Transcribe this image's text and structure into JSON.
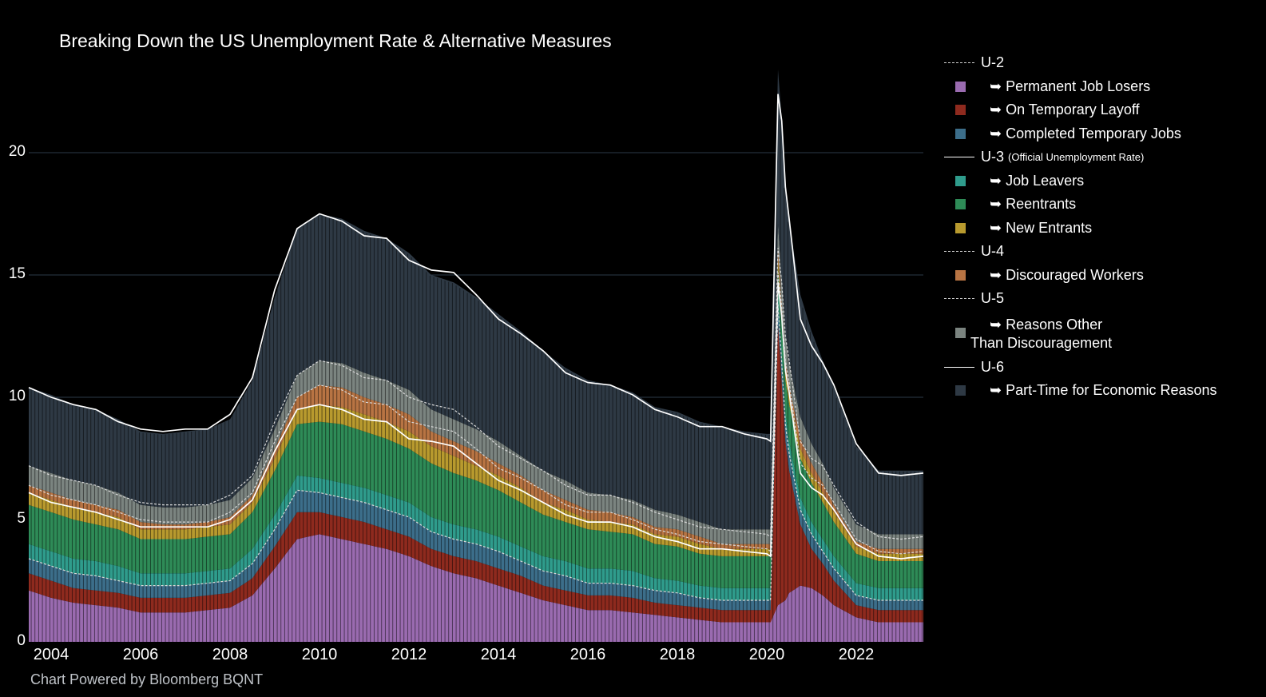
{
  "chart_data": {
    "type": "area",
    "title": "Breaking Down the US Unemployment Rate & Alternative Measures",
    "credit": "Chart Powered by Bloomberg BQNT",
    "x_range": [
      "2003-07",
      "2023-07"
    ],
    "ylim": [
      0,
      23.5
    ],
    "y_ticks": [
      "0",
      "5",
      "10",
      "15",
      "20"
    ],
    "x_ticks": [
      "2004",
      "2006",
      "2008",
      "2010",
      "2012",
      "2014",
      "2016",
      "2018",
      "2020",
      "2022"
    ],
    "grid": true,
    "legend_position": "right",
    "dates": [
      "2003-07",
      "2004-01",
      "2004-07",
      "2005-01",
      "2005-07",
      "2006-01",
      "2006-07",
      "2007-01",
      "2007-07",
      "2008-01",
      "2008-07",
      "2009-01",
      "2009-07",
      "2010-01",
      "2010-07",
      "2011-01",
      "2011-07",
      "2012-01",
      "2012-07",
      "2013-01",
      "2013-07",
      "2014-01",
      "2014-07",
      "2015-01",
      "2015-07",
      "2016-01",
      "2016-07",
      "2017-01",
      "2017-07",
      "2018-01",
      "2018-07",
      "2019-01",
      "2019-07",
      "2020-01",
      "2020-02",
      "2020-04",
      "2020-05",
      "2020-06",
      "2020-07",
      "2020-10",
      "2021-01",
      "2021-04",
      "2021-07",
      "2022-01",
      "2022-07",
      "2023-01",
      "2023-07"
    ],
    "series": [
      {
        "name": "Permanent Job Losers",
        "color": "#9a6bb0",
        "values": [
          2.1,
          1.8,
          1.6,
          1.5,
          1.4,
          1.2,
          1.2,
          1.2,
          1.3,
          1.4,
          1.9,
          3.0,
          4.2,
          4.4,
          4.2,
          4.0,
          3.8,
          3.5,
          3.1,
          2.8,
          2.6,
          2.3,
          2.0,
          1.7,
          1.5,
          1.3,
          1.3,
          1.2,
          1.1,
          1.0,
          0.9,
          0.8,
          0.8,
          0.8,
          0.8,
          1.5,
          1.6,
          1.7,
          2.0,
          2.3,
          2.2,
          1.9,
          1.5,
          1.0,
          0.8,
          0.8,
          0.8
        ]
      },
      {
        "name": "On Temporary Layoff",
        "color": "#8e2a1e",
        "values": [
          0.7,
          0.7,
          0.6,
          0.6,
          0.6,
          0.6,
          0.6,
          0.6,
          0.6,
          0.6,
          0.7,
          0.9,
          1.1,
          0.9,
          0.9,
          0.9,
          0.8,
          0.8,
          0.7,
          0.7,
          0.7,
          0.7,
          0.7,
          0.6,
          0.6,
          0.6,
          0.6,
          0.6,
          0.5,
          0.5,
          0.5,
          0.5,
          0.5,
          0.5,
          0.5,
          11.5,
          9.0,
          6.5,
          5.0,
          2.5,
          1.6,
          1.3,
          1.0,
          0.5,
          0.5,
          0.5,
          0.5
        ]
      },
      {
        "name": "Completed Temporary Jobs",
        "color": "#3c6e8a",
        "values": [
          0.6,
          0.6,
          0.6,
          0.6,
          0.5,
          0.5,
          0.5,
          0.5,
          0.5,
          0.5,
          0.6,
          0.7,
          0.9,
          0.8,
          0.8,
          0.8,
          0.8,
          0.8,
          0.7,
          0.7,
          0.7,
          0.7,
          0.6,
          0.6,
          0.6,
          0.5,
          0.5,
          0.5,
          0.5,
          0.5,
          0.4,
          0.4,
          0.4,
          0.4,
          0.4,
          0.8,
          0.8,
          0.7,
          0.7,
          0.6,
          0.6,
          0.5,
          0.5,
          0.4,
          0.4,
          0.4,
          0.4
        ]
      },
      {
        "name": "Job Leavers",
        "color": "#2f9c8c",
        "values": [
          0.6,
          0.6,
          0.6,
          0.6,
          0.6,
          0.5,
          0.5,
          0.5,
          0.5,
          0.5,
          0.6,
          0.6,
          0.6,
          0.6,
          0.6,
          0.6,
          0.6,
          0.6,
          0.6,
          0.6,
          0.6,
          0.6,
          0.6,
          0.6,
          0.6,
          0.6,
          0.6,
          0.6,
          0.5,
          0.5,
          0.5,
          0.5,
          0.5,
          0.5,
          0.5,
          0.5,
          0.5,
          0.5,
          0.5,
          0.5,
          0.5,
          0.5,
          0.5,
          0.5,
          0.5,
          0.5,
          0.5
        ]
      },
      {
        "name": "Reentrants",
        "color": "#2e8b57",
        "values": [
          1.6,
          1.6,
          1.6,
          1.5,
          1.5,
          1.4,
          1.4,
          1.4,
          1.4,
          1.4,
          1.5,
          1.8,
          2.1,
          2.3,
          2.4,
          2.3,
          2.3,
          2.2,
          2.2,
          2.1,
          2.0,
          1.9,
          1.8,
          1.7,
          1.6,
          1.6,
          1.5,
          1.5,
          1.4,
          1.4,
          1.3,
          1.3,
          1.3,
          1.3,
          1.3,
          1.0,
          1.1,
          1.3,
          1.5,
          1.6,
          1.6,
          1.5,
          1.4,
          1.2,
          1.1,
          1.1,
          1.1
        ]
      },
      {
        "name": "New Entrants",
        "color": "#b89a2e",
        "values": [
          0.5,
          0.5,
          0.5,
          0.5,
          0.5,
          0.4,
          0.4,
          0.4,
          0.4,
          0.4,
          0.4,
          0.5,
          0.6,
          0.7,
          0.7,
          0.7,
          0.7,
          0.7,
          0.7,
          0.7,
          0.6,
          0.6,
          0.6,
          0.5,
          0.5,
          0.4,
          0.4,
          0.4,
          0.4,
          0.4,
          0.4,
          0.3,
          0.3,
          0.3,
          0.3,
          0.4,
          0.4,
          0.4,
          0.4,
          0.4,
          0.4,
          0.4,
          0.4,
          0.3,
          0.3,
          0.3,
          0.3
        ]
      },
      {
        "name": "Discouraged Workers",
        "color": "#b87443",
        "values": [
          0.3,
          0.3,
          0.3,
          0.3,
          0.3,
          0.3,
          0.2,
          0.2,
          0.2,
          0.3,
          0.3,
          0.4,
          0.5,
          0.8,
          0.8,
          0.7,
          0.7,
          0.7,
          0.6,
          0.6,
          0.6,
          0.5,
          0.5,
          0.5,
          0.4,
          0.4,
          0.4,
          0.3,
          0.3,
          0.3,
          0.3,
          0.2,
          0.2,
          0.2,
          0.2,
          0.4,
          0.4,
          0.4,
          0.4,
          0.4,
          0.4,
          0.4,
          0.3,
          0.2,
          0.2,
          0.2,
          0.2
        ]
      },
      {
        "name": "Reasons Other Than Discouragement",
        "color": "#7b8480",
        "values": [
          0.8,
          0.8,
          0.8,
          0.8,
          0.7,
          0.7,
          0.7,
          0.7,
          0.7,
          0.7,
          0.7,
          0.8,
          0.9,
          1.0,
          1.0,
          1.0,
          1.0,
          1.0,
          0.9,
          0.9,
          0.9,
          0.9,
          0.8,
          0.8,
          0.8,
          0.7,
          0.7,
          0.7,
          0.7,
          0.6,
          0.6,
          0.6,
          0.6,
          0.6,
          0.6,
          1.0,
          1.0,
          1.0,
          0.9,
          0.9,
          0.8,
          0.8,
          0.7,
          0.7,
          0.6,
          0.6,
          0.6
        ]
      },
      {
        "name": "Part-Time for Economic Reasons",
        "color": "#2e3944",
        "values": [
          3.2,
          3.2,
          3.1,
          3.1,
          3.0,
          3.0,
          3.0,
          3.1,
          3.1,
          3.3,
          4.0,
          5.4,
          6.0,
          6.0,
          5.9,
          5.8,
          5.8,
          5.6,
          5.5,
          5.6,
          5.4,
          5.2,
          5.1,
          4.9,
          4.6,
          4.6,
          4.5,
          4.4,
          4.2,
          4.2,
          4.1,
          4.2,
          4.0,
          3.9,
          3.9,
          6.3,
          6.6,
          6.1,
          5.8,
          5.0,
          4.6,
          4.2,
          4.1,
          3.2,
          2.6,
          2.6,
          2.6
        ]
      }
    ],
    "lines": [
      {
        "name": "U-2",
        "style": "dashed",
        "values": [
          3.4,
          3.1,
          2.8,
          2.7,
          2.5,
          2.3,
          2.3,
          2.3,
          2.4,
          2.5,
          3.2,
          4.6,
          6.2,
          6.1,
          5.9,
          5.7,
          5.4,
          5.1,
          4.5,
          4.2,
          4.0,
          3.7,
          3.3,
          2.9,
          2.7,
          2.4,
          2.4,
          2.3,
          2.1,
          2.0,
          1.8,
          1.7,
          1.7,
          1.7,
          1.7,
          13.8,
          11.4,
          8.9,
          7.7,
          5.4,
          4.4,
          3.7,
          3.0,
          1.9,
          1.7,
          1.7,
          1.7
        ]
      },
      {
        "name": "U-3",
        "subtitle": "(Official Unemployment Rate)",
        "style": "solid",
        "values": [
          6.1,
          5.7,
          5.5,
          5.3,
          5.0,
          4.7,
          4.7,
          4.7,
          4.7,
          5.0,
          5.8,
          7.8,
          9.5,
          9.7,
          9.5,
          9.1,
          9.0,
          8.3,
          8.2,
          8.0,
          7.3,
          6.6,
          6.2,
          5.7,
          5.2,
          4.9,
          4.9,
          4.7,
          4.3,
          4.1,
          3.8,
          3.8,
          3.7,
          3.6,
          3.5,
          14.7,
          13.3,
          11.1,
          10.2,
          6.9,
          6.3,
          6.0,
          5.4,
          4.0,
          3.5,
          3.4,
          3.5
        ]
      },
      {
        "name": "U-4",
        "style": "dashed",
        "values": [
          6.4,
          6.0,
          5.8,
          5.6,
          5.3,
          5.0,
          4.9,
          4.9,
          4.9,
          5.3,
          6.1,
          8.2,
          10.0,
          10.5,
          10.3,
          9.8,
          9.7,
          9.0,
          8.8,
          8.6,
          7.9,
          7.1,
          6.7,
          6.2,
          5.6,
          5.3,
          5.3,
          5.0,
          4.6,
          4.4,
          4.1,
          4.0,
          3.9,
          3.8,
          3.7,
          15.1,
          13.7,
          11.5,
          10.6,
          7.3,
          6.7,
          6.4,
          5.7,
          4.2,
          3.7,
          3.6,
          3.7
        ]
      },
      {
        "name": "U-5",
        "style": "dashed",
        "values": [
          7.2,
          6.8,
          6.6,
          6.4,
          6.0,
          5.7,
          5.6,
          5.6,
          5.6,
          6.0,
          6.8,
          9.0,
          10.9,
          11.5,
          11.3,
          10.8,
          10.7,
          10.0,
          9.7,
          9.5,
          8.8,
          8.0,
          7.5,
          7.0,
          6.4,
          6.0,
          6.0,
          5.7,
          5.3,
          5.0,
          4.7,
          4.6,
          4.5,
          4.4,
          4.3,
          16.1,
          14.7,
          12.5,
          11.5,
          8.2,
          7.5,
          7.2,
          6.4,
          4.9,
          4.3,
          4.2,
          4.3
        ]
      },
      {
        "name": "U-6",
        "style": "solid",
        "values": [
          10.4,
          10.0,
          9.7,
          9.5,
          9.0,
          8.7,
          8.6,
          8.7,
          8.7,
          9.3,
          10.8,
          14.4,
          16.9,
          17.5,
          17.2,
          16.6,
          16.5,
          15.6,
          15.2,
          15.1,
          14.2,
          13.2,
          12.6,
          11.9,
          11.0,
          10.6,
          10.5,
          10.1,
          9.5,
          9.2,
          8.8,
          8.8,
          8.5,
          8.3,
          8.2,
          22.4,
          21.3,
          18.6,
          17.3,
          13.2,
          12.1,
          11.4,
          10.5,
          8.1,
          6.9,
          6.8,
          6.9
        ]
      }
    ]
  },
  "legend": [
    {
      "kind": "line",
      "style": "dashed",
      "label": "U-2"
    },
    {
      "kind": "swatch",
      "color": "#9a6bb0",
      "label": "➥ Permanent Job Losers"
    },
    {
      "kind": "swatch",
      "color": "#8e2a1e",
      "label": "➥ On Temporary Layoff"
    },
    {
      "kind": "swatch",
      "color": "#3c6e8a",
      "label": "➥ Completed Temporary Jobs"
    },
    {
      "kind": "line",
      "style": "solid",
      "label": "U-3",
      "small": "(Official Unemployment Rate)"
    },
    {
      "kind": "swatch",
      "color": "#2f9c8c",
      "label": "➥ Job Leavers"
    },
    {
      "kind": "swatch",
      "color": "#2e8b57",
      "label": "➥ Reentrants"
    },
    {
      "kind": "swatch",
      "color": "#b89a2e",
      "label": "➥ New Entrants"
    },
    {
      "kind": "line",
      "style": "dashed",
      "label": "U-4"
    },
    {
      "kind": "swatch",
      "color": "#b87443",
      "label": "➥ Discouraged Workers"
    },
    {
      "kind": "line",
      "style": "dashed",
      "label": "U-5"
    },
    {
      "kind": "swatch",
      "color": "#7b8480",
      "label": "➥ Reasons Other",
      "label2": "Than Discouragement"
    },
    {
      "kind": "line",
      "style": "solid",
      "label": "U-6"
    },
    {
      "kind": "swatch",
      "color": "#2e3944",
      "label": "➥ Part-Time for Economic Reasons"
    }
  ]
}
